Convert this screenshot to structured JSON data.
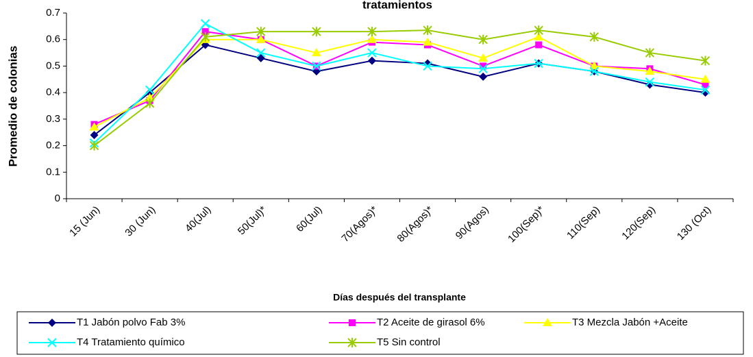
{
  "chart_data": {
    "type": "line",
    "title": "tratamientos",
    "x_label": "Días después del transplante",
    "y_label": "Promedio de colonias",
    "categories": [
      "15 (Jun)",
      "30 (Jun)",
      "40(Jul)",
      "50(Jul)*",
      "60(Jul)",
      "70(Agos)*",
      "80(Agos)*",
      "90(Agos)",
      "100(Sep)*",
      "110(Sep)",
      "120(Sep)",
      "130 (Oct)"
    ],
    "series": [
      {
        "name": "T1 Jabón polvo Fab 3%",
        "color": "#000080",
        "marker": "diamond",
        "values": [
          0.24,
          0.4,
          0.58,
          0.53,
          0.48,
          0.52,
          0.51,
          0.46,
          0.51,
          0.48,
          0.43,
          0.4
        ]
      },
      {
        "name": "T2 Aceite de girasol 6%",
        "color": "#ff00ff",
        "marker": "square",
        "values": [
          0.28,
          0.37,
          0.63,
          0.6,
          0.5,
          0.59,
          0.58,
          0.5,
          0.58,
          0.5,
          0.49,
          0.43
        ]
      },
      {
        "name": "T3 Mezcla Jabón +Aceite",
        "color": "#ffff00",
        "marker": "triangle",
        "values": [
          0.27,
          0.38,
          0.6,
          0.6,
          0.55,
          0.6,
          0.59,
          0.53,
          0.61,
          0.5,
          0.48,
          0.45
        ]
      },
      {
        "name": "T4 Tratamiento químico",
        "color": "#00ffff",
        "marker": "x",
        "values": [
          0.21,
          0.41,
          0.66,
          0.55,
          0.5,
          0.55,
          0.5,
          0.49,
          0.51,
          0.48,
          0.44,
          0.41
        ]
      },
      {
        "name": "T5 Sin control",
        "color": "#99cc00",
        "marker": "star",
        "values": [
          0.2,
          0.36,
          0.61,
          0.63,
          0.63,
          0.63,
          0.635,
          0.6,
          0.635,
          0.61,
          0.55,
          0.52
        ]
      }
    ],
    "ylim": [
      0,
      0.7
    ],
    "yticks": [
      0,
      0.1,
      0.2,
      0.3,
      0.4,
      0.5,
      0.6,
      0.7
    ],
    "grid": false,
    "legend": "bottom"
  }
}
